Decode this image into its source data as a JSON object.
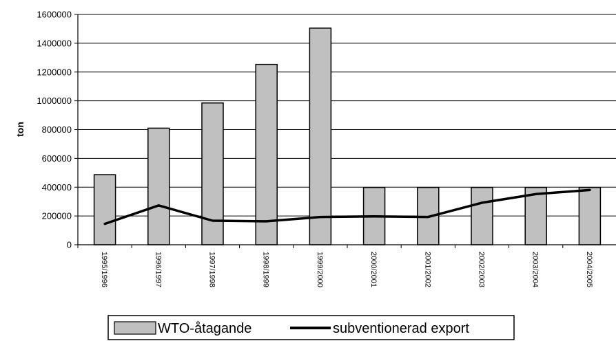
{
  "chart_data": {
    "type": "bar",
    "title": "",
    "xlabel": "",
    "ylabel": "ton",
    "ylim": [
      0,
      1600000
    ],
    "y_ticks": [
      "0",
      "200000",
      "400000",
      "600000",
      "800000",
      "1000000",
      "1200000",
      "1400000",
      "1600000"
    ],
    "y_tick_values": [
      0,
      200000,
      400000,
      600000,
      800000,
      1000000,
      1200000,
      1400000,
      1600000
    ],
    "categories": [
      "1995/1996",
      "1996/1997",
      "1997/1998",
      "1998/1999",
      "1999/2000",
      "2000/2001",
      "2001/2002",
      "2002/2003",
      "2003/2004",
      "2004/2005"
    ],
    "grid": true,
    "legend_position": "bottom",
    "series": [
      {
        "name": "WTO-åtagande",
        "kind": "bar",
        "color": "#c0c0c0",
        "values": [
          487000,
          810000,
          985000,
          1253000,
          1505000,
          398000,
          398000,
          398000,
          398000,
          398000
        ]
      },
      {
        "name": "subventionerad export",
        "kind": "line",
        "color": "#000000",
        "values": [
          145000,
          273000,
          167000,
          163000,
          193000,
          197000,
          193000,
          292000,
          352000,
          380000
        ]
      }
    ]
  }
}
